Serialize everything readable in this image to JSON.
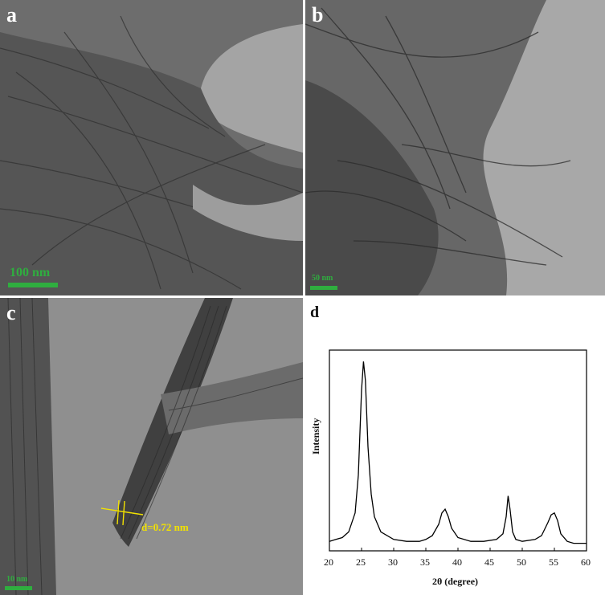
{
  "panels": {
    "a": {
      "label": "a",
      "scale_bar": "100 nm"
    },
    "b": {
      "label": "b",
      "scale_bar": "50 nm"
    },
    "c": {
      "label": "c",
      "scale_bar": "10 nm",
      "d_spacing": "d=0.72 nm"
    },
    "d": {
      "label": "d"
    }
  },
  "colors": {
    "scale_bar": "#2fae3f",
    "annotation": "#f2e200",
    "panel_label": "#ffffff",
    "plot_line": "#000000"
  },
  "chart_data": {
    "type": "line",
    "title": "",
    "xlabel": "2θ (degree)",
    "ylabel": "Intensity",
    "xlim": [
      20,
      60
    ],
    "x_ticks": [
      "20",
      "25",
      "30",
      "35",
      "40",
      "45",
      "50",
      "55",
      "60"
    ],
    "grid": false,
    "legend": "none",
    "series": [
      {
        "x": [
          20,
          21,
          22,
          23,
          24,
          24.5,
          25,
          25.3,
          25.6,
          26,
          26.5,
          27,
          28,
          30,
          32,
          34,
          35,
          36,
          37,
          37.5,
          38,
          38.5,
          39,
          40,
          42,
          44,
          46,
          47,
          47.5,
          47.8,
          48.1,
          48.5,
          49,
          50,
          52,
          53,
          54,
          54.5,
          55,
          55.5,
          56,
          57,
          58,
          60
        ],
        "y": [
          0.05,
          0.06,
          0.07,
          0.1,
          0.2,
          0.4,
          0.85,
          1.0,
          0.9,
          0.55,
          0.3,
          0.18,
          0.1,
          0.06,
          0.05,
          0.05,
          0.06,
          0.08,
          0.14,
          0.2,
          0.22,
          0.18,
          0.12,
          0.07,
          0.05,
          0.05,
          0.06,
          0.09,
          0.18,
          0.29,
          0.22,
          0.1,
          0.06,
          0.05,
          0.06,
          0.08,
          0.15,
          0.19,
          0.2,
          0.16,
          0.09,
          0.05,
          0.04,
          0.04
        ]
      }
    ]
  }
}
